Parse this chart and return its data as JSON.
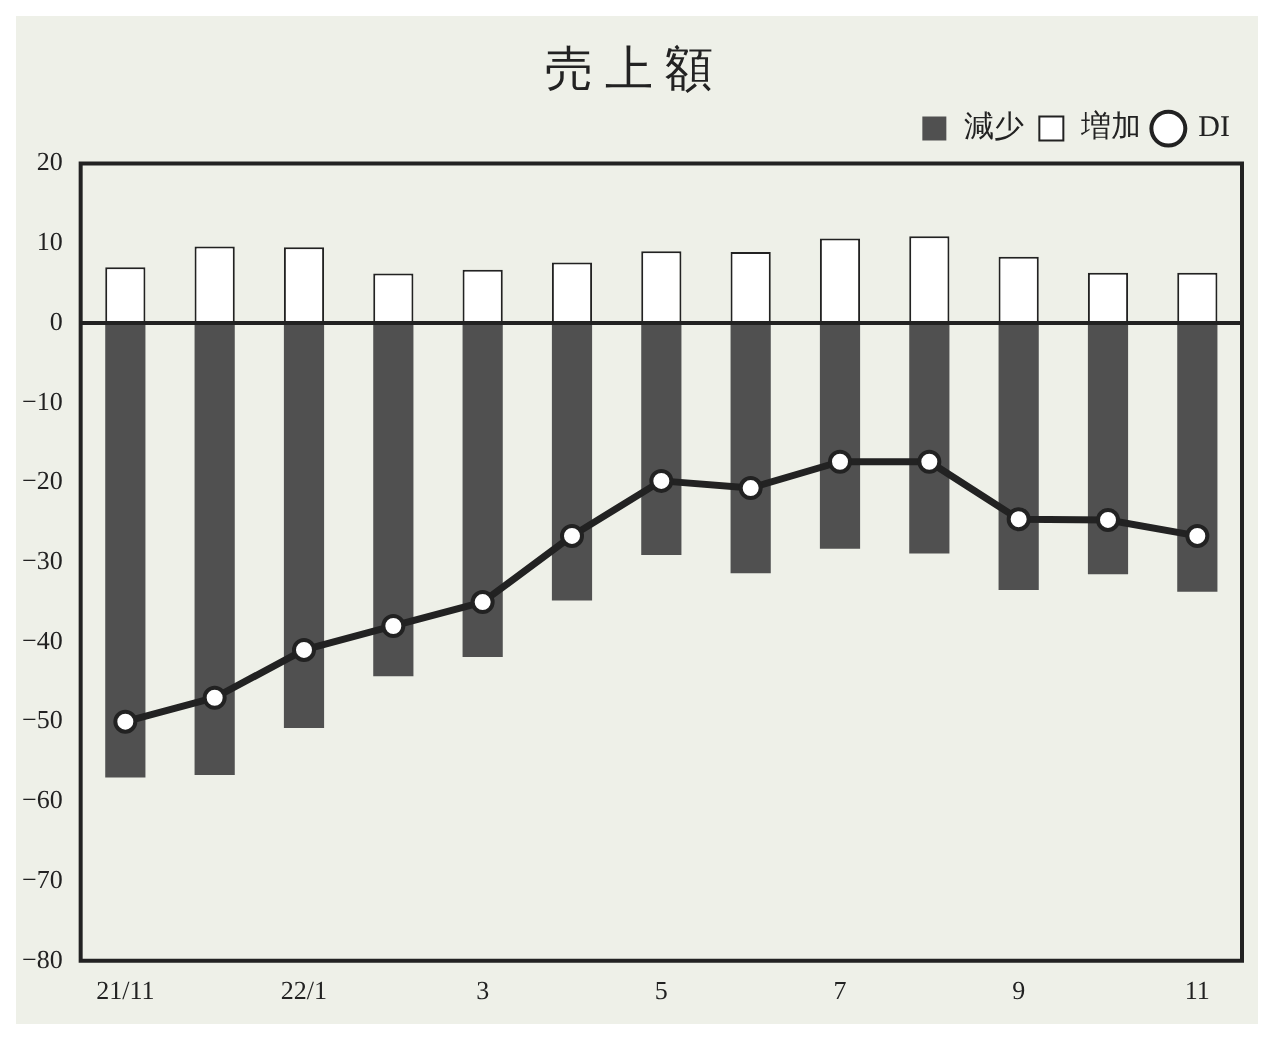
{
  "chart_data": {
    "type": "bar",
    "title": "売 上 額",
    "categories": [
      "21/11",
      null,
      "22/1",
      null,
      "3",
      null,
      "5",
      null,
      "7",
      null,
      "9",
      null,
      "11"
    ],
    "series": [
      {
        "name": "減少",
        "color": "#505050",
        "values": [
          -57,
          -56.7,
          -50.8,
          -44.3,
          -41.9,
          -34.8,
          -29.1,
          -31.4,
          -28.3,
          -28.9,
          -33.5,
          -31.5,
          -33.7
        ]
      },
      {
        "name": "増加",
        "color": "#ffffff",
        "values": [
          7,
          9.6,
          9.5,
          6.2,
          6.7,
          7.6,
          9,
          8.9,
          10.6,
          10.9,
          8.3,
          6.3,
          6.3
        ]
      },
      {
        "name": "DI",
        "type": "line",
        "color": "#222222",
        "marker": "circle",
        "values": [
          -50,
          -47,
          -41,
          -38,
          -35,
          -26.7,
          -19.8,
          -20.7,
          -17.4,
          -17.4,
          -24.6,
          -24.7,
          -26.7
        ]
      }
    ],
    "stacked": true,
    "ylim": [
      -80,
      20
    ],
    "yticks": [
      -80,
      -70,
      -60,
      -50,
      -40,
      -30,
      -20,
      -10,
      0,
      10,
      20
    ],
    "grid": false,
    "legend": "top right",
    "ref_lines": [
      {
        "axis": "y",
        "value": 0,
        "color": "#222222"
      }
    ]
  }
}
